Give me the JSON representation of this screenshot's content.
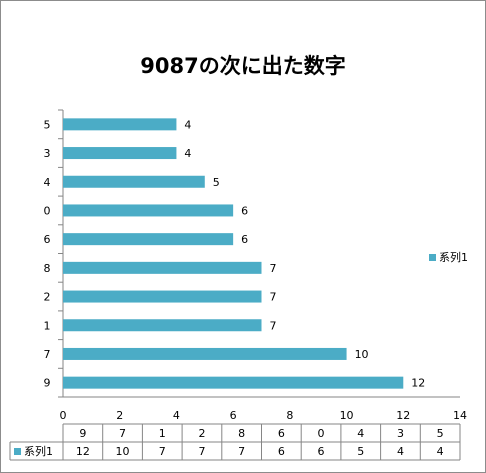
{
  "chart_data": {
    "type": "bar",
    "orientation": "horizontal",
    "title": "9087の次に出た数字",
    "categories": [
      "9",
      "7",
      "1",
      "2",
      "8",
      "6",
      "0",
      "4",
      "3",
      "5"
    ],
    "series": [
      {
        "name": "系列1",
        "values": [
          12,
          10,
          7,
          7,
          7,
          6,
          6,
          5,
          4,
          4
        ],
        "color": "#4bacc6"
      }
    ],
    "xlim": [
      0,
      14
    ],
    "xticks": [
      0,
      2,
      4,
      6,
      8,
      10,
      12,
      14
    ],
    "data_labels": true,
    "legend_position": "right",
    "data_table": true
  }
}
